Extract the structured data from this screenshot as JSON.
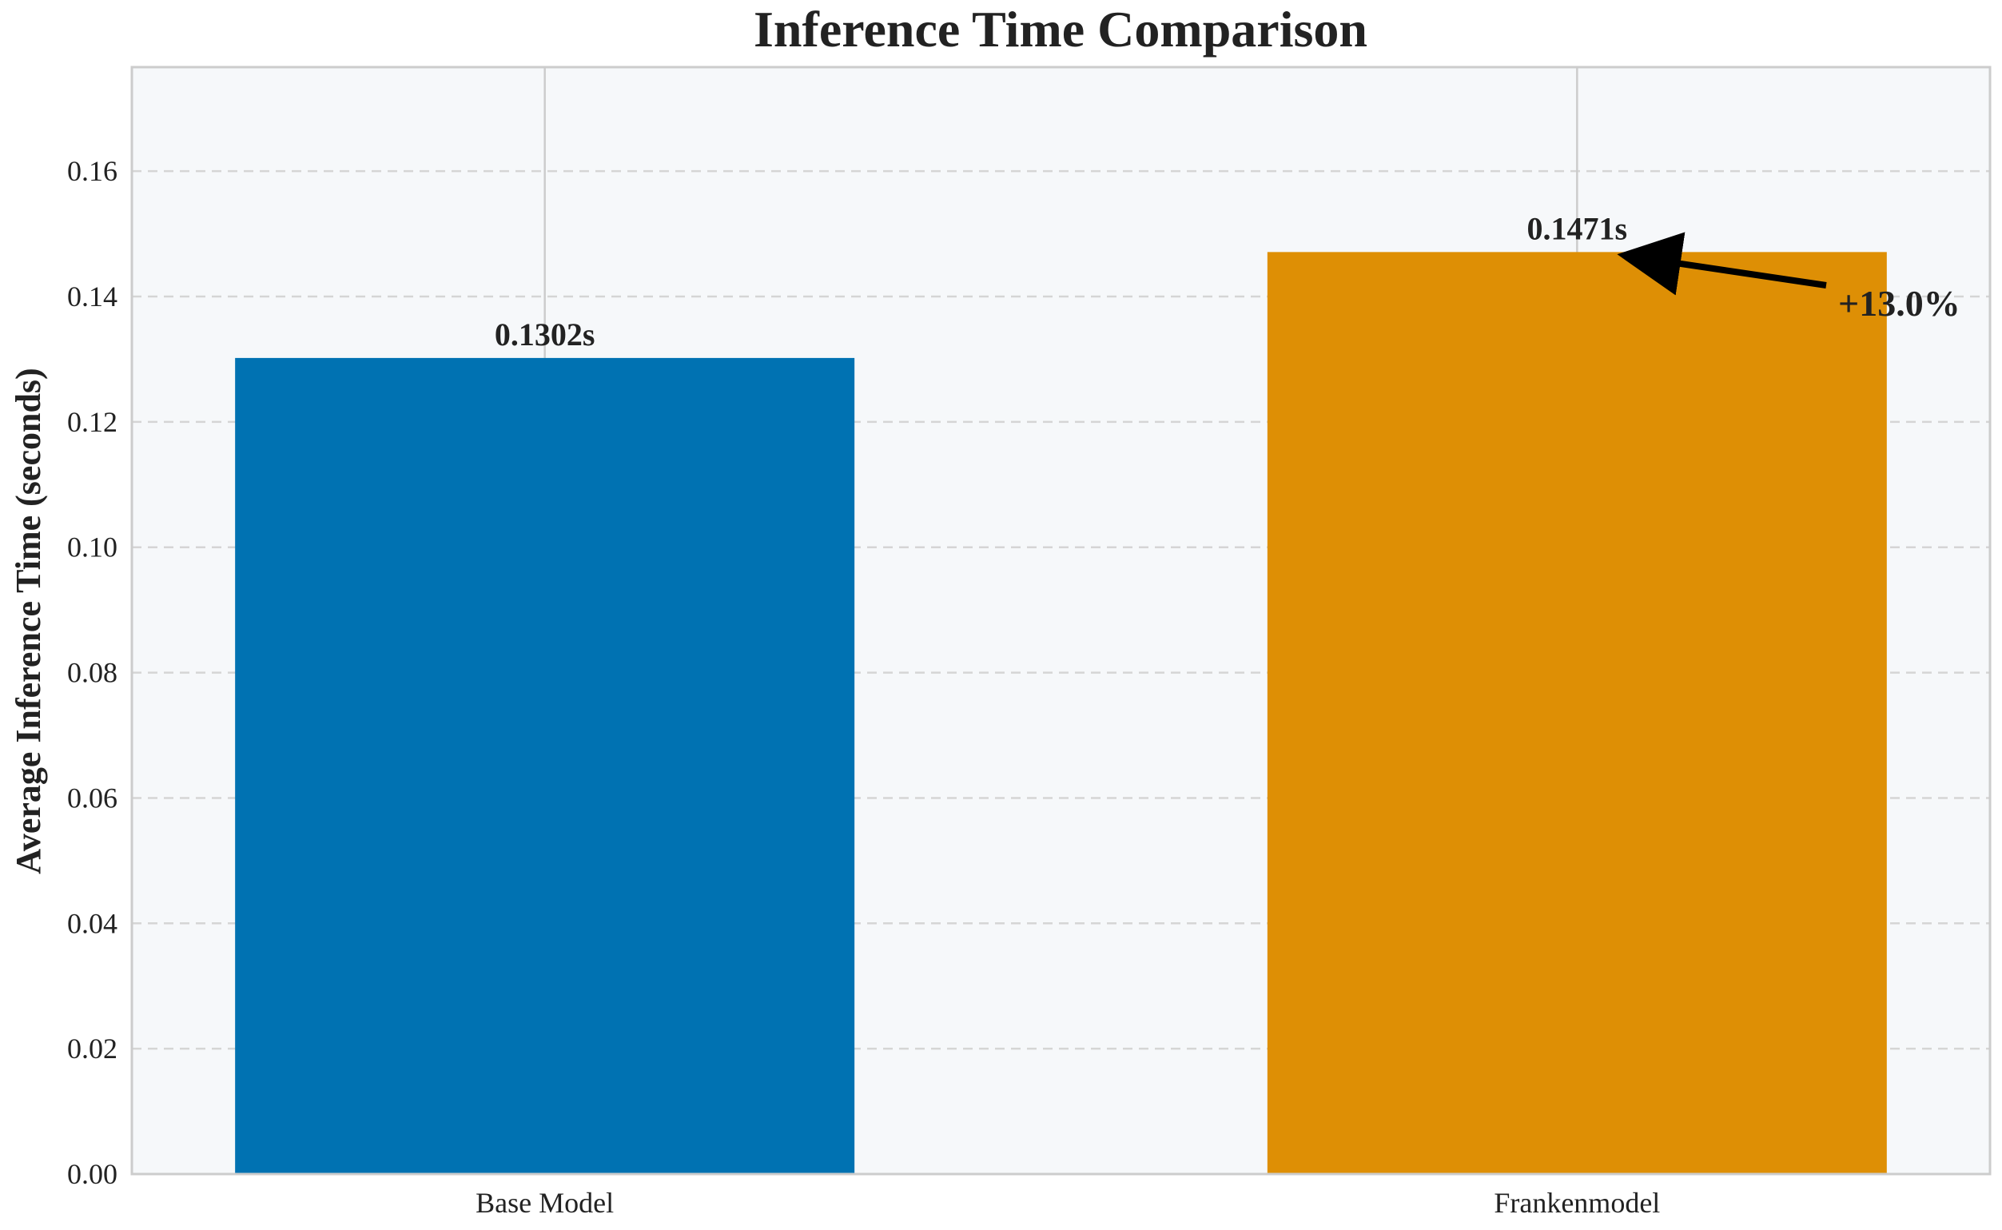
{
  "chart_data": {
    "type": "bar",
    "title": "Inference Time Comparison",
    "xlabel": "",
    "ylabel": "Average Inference Time (seconds)",
    "categories": [
      "Base Model",
      "Frankenmodel"
    ],
    "values": [
      0.1302,
      0.1471
    ],
    "value_labels": [
      "0.1302s",
      "0.1471s"
    ],
    "bar_colors": [
      "#0072B2",
      "#DE8F05"
    ],
    "ylim": [
      0,
      0.1766
    ],
    "yticks": [
      0.0,
      0.02,
      0.04,
      0.06,
      0.08,
      0.1,
      0.12,
      0.14,
      0.16
    ],
    "ytick_labels": [
      "0.00",
      "0.02",
      "0.04",
      "0.06",
      "0.08",
      "0.10",
      "0.12",
      "0.14",
      "0.16"
    ],
    "grid": true,
    "plot_background": "#F6F8FA",
    "annotation": {
      "text": "+13.0%",
      "target_category": "Frankenmodel",
      "target_value": 0.1471
    }
  }
}
